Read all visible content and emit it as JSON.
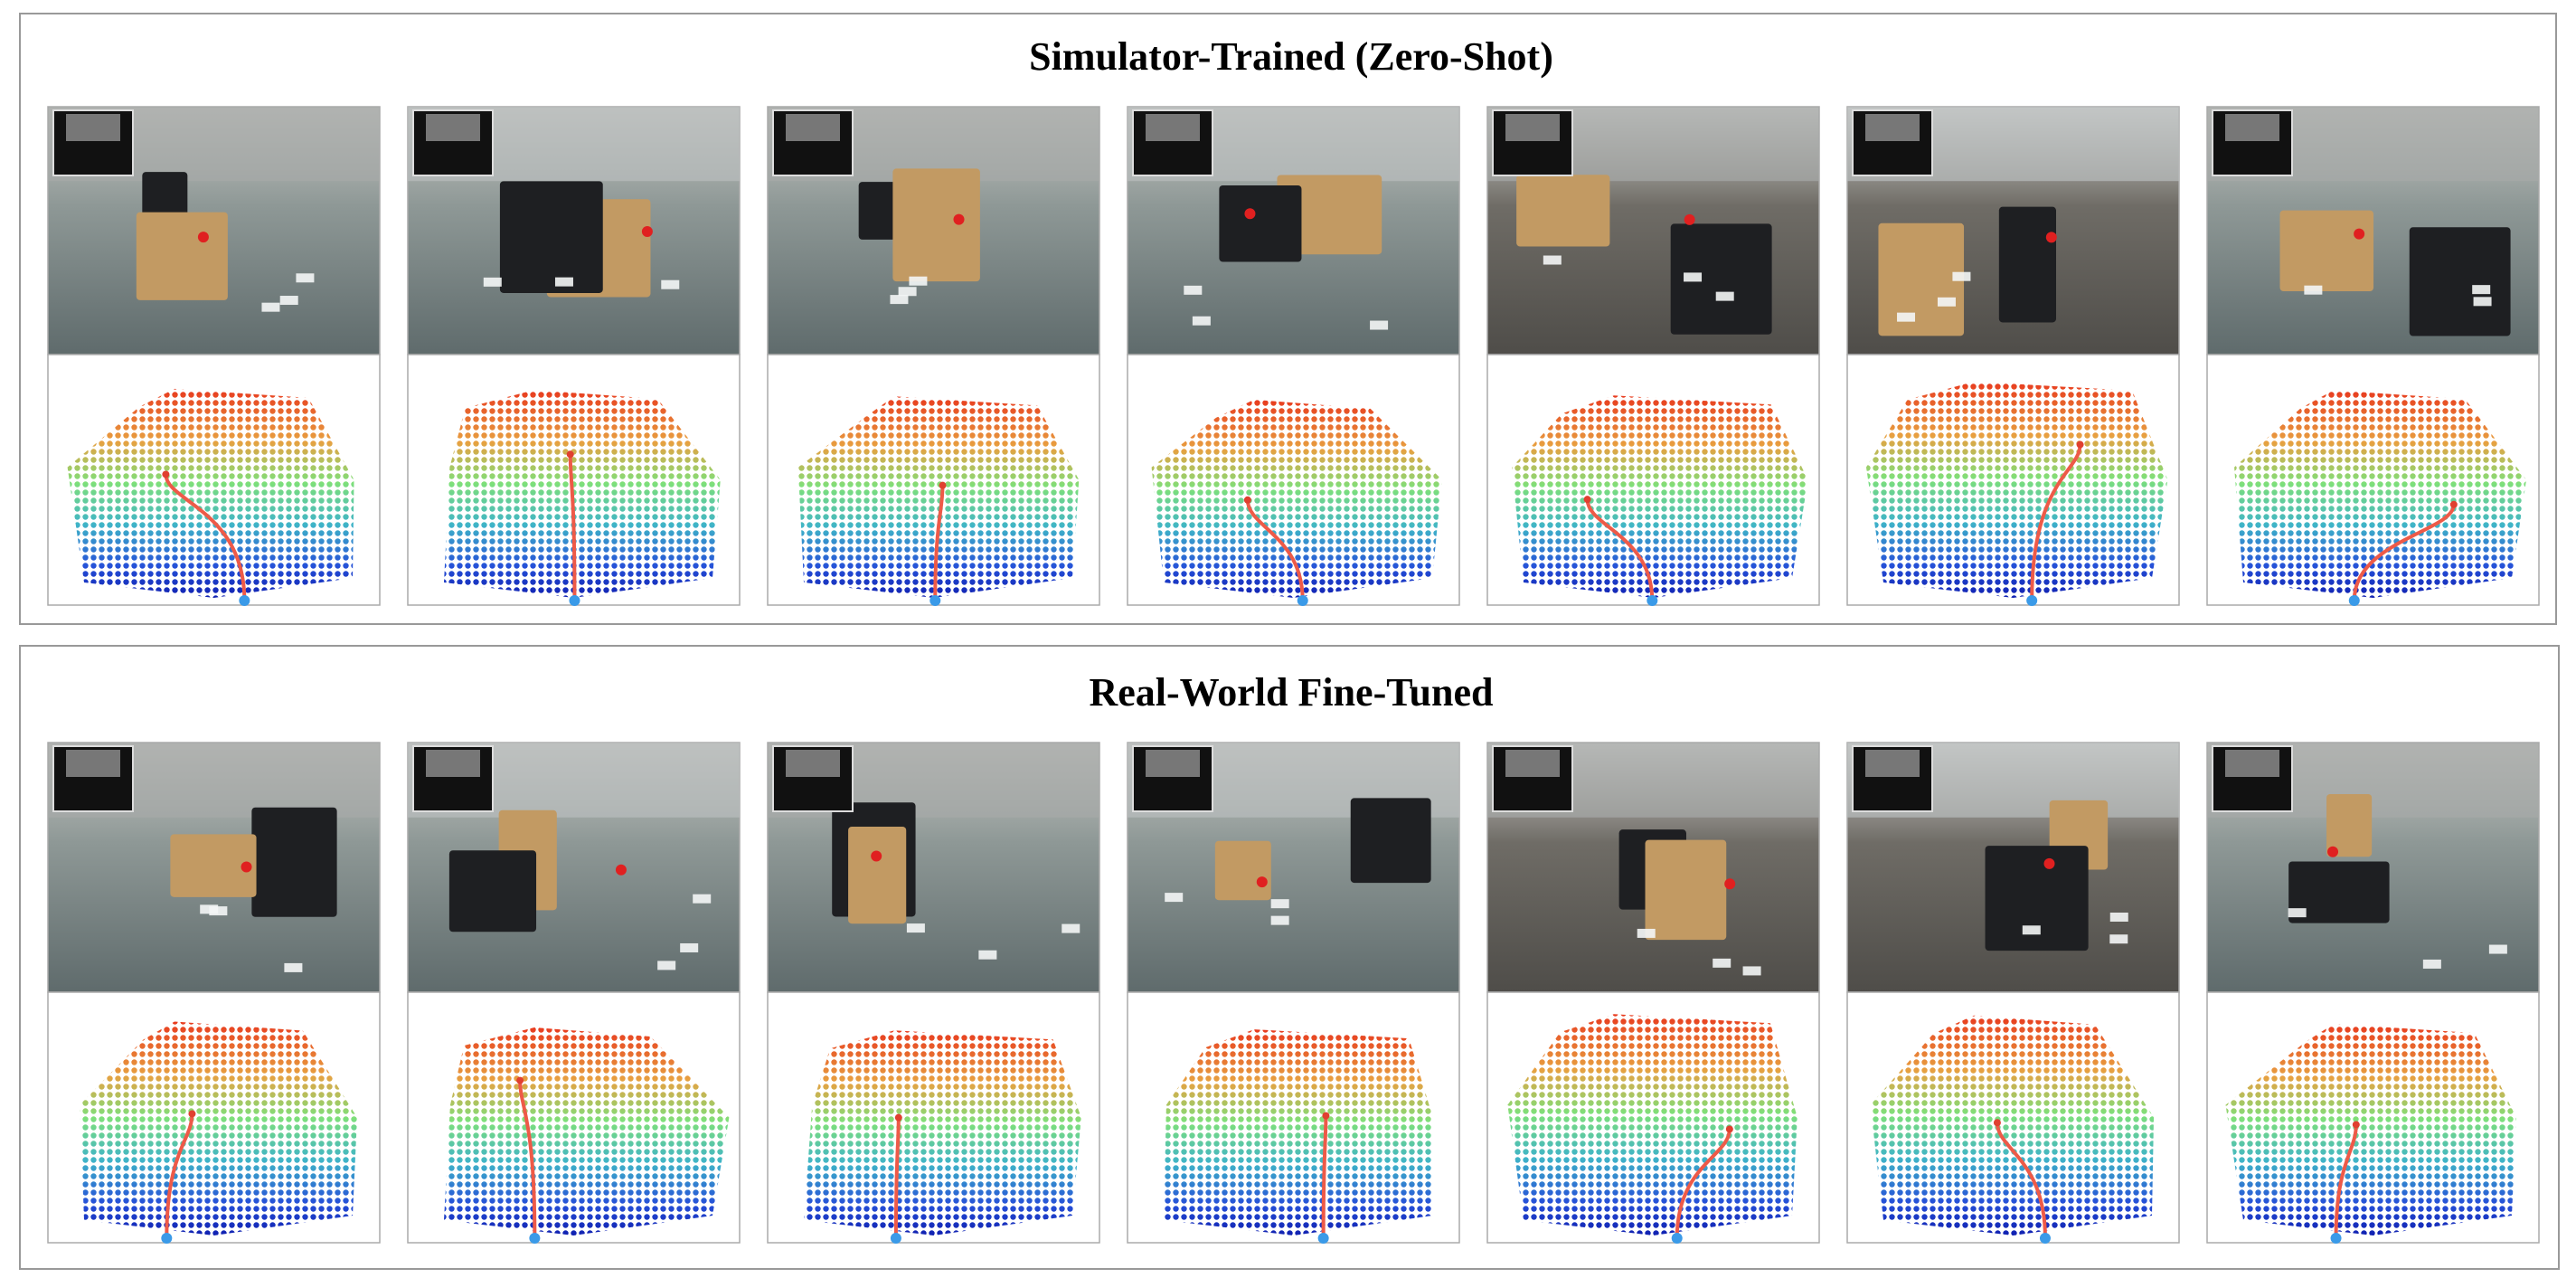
{
  "panels": [
    {
      "title": "Simulator-Trained (Zero-Shot)"
    },
    {
      "title": "Real-World Fine-Tuned"
    }
  ]
}
